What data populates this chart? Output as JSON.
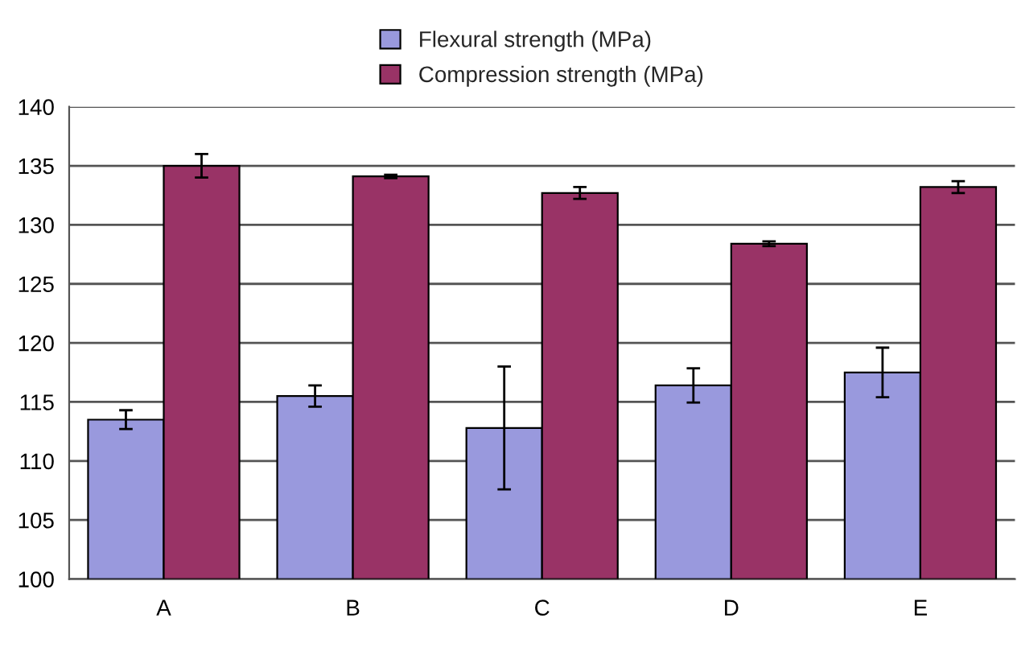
{
  "chart_data": {
    "type": "bar",
    "categories": [
      "A",
      "B",
      "C",
      "D",
      "E"
    ],
    "series": [
      {
        "name": "Flexural strength (MPa)",
        "color": "#9999dd",
        "values": [
          113.5,
          115.5,
          112.8,
          116.4,
          117.5
        ],
        "errors": [
          0.8,
          0.9,
          5.2,
          1.45,
          2.1
        ]
      },
      {
        "name": "Compression strength (MPa)",
        "color": "#993366",
        "values": [
          135.0,
          134.1,
          132.7,
          128.4,
          133.2
        ],
        "errors": [
          1.0,
          0.15,
          0.5,
          0.2,
          0.5
        ]
      }
    ],
    "ylim": [
      100,
      140
    ],
    "yticks": [
      100,
      105,
      110,
      115,
      120,
      125,
      130,
      135,
      140
    ],
    "grid": "y",
    "legend": "top"
  }
}
